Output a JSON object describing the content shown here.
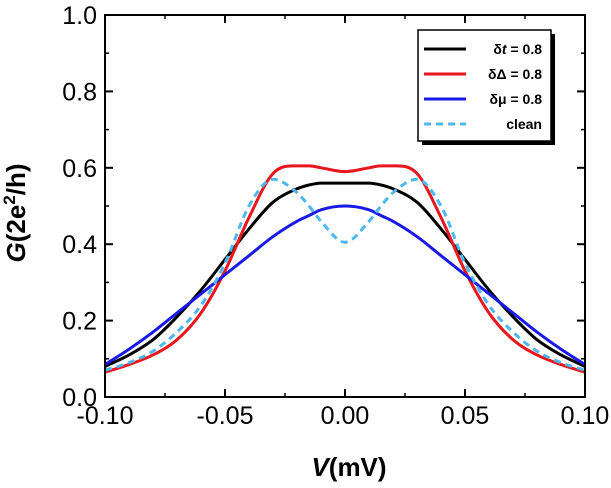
{
  "chart_data": {
    "type": "line",
    "xlabel": {
      "italic": "V",
      "rest": "(mV)"
    },
    "ylabel": {
      "italic": "G",
      "pre": "(2e",
      "sup": "2",
      "post": "/h)"
    },
    "xlim": [
      -0.1,
      0.1
    ],
    "ylim": [
      0.0,
      1.0
    ],
    "xticks": [
      -0.1,
      -0.05,
      0.0,
      0.05,
      0.1
    ],
    "xtick_labels": [
      "-0.10",
      "-0.05",
      "0.00",
      "0.05",
      "0.10"
    ],
    "yticks": [
      0.0,
      0.2,
      0.4,
      0.6,
      0.8,
      1.0
    ],
    "ytick_labels": [
      "0.0",
      "0.2",
      "0.4",
      "0.6",
      "0.8",
      "1.0"
    ],
    "x": [
      -0.1,
      -0.09,
      -0.08,
      -0.07,
      -0.06,
      -0.05,
      -0.04,
      -0.03,
      -0.02,
      -0.015,
      -0.01,
      0.0,
      0.01,
      0.015,
      0.02,
      0.03,
      0.04,
      0.05,
      0.06,
      0.07,
      0.08,
      0.09,
      0.1
    ],
    "series": [
      {
        "name": "δt = 0.8",
        "legend": {
          "prefix": "δ",
          "var": "t",
          "suffix": " = 0.8"
        },
        "color": "#000000",
        "dash": "",
        "values": [
          0.08,
          0.11,
          0.15,
          0.21,
          0.28,
          0.36,
          0.44,
          0.51,
          0.545,
          0.555,
          0.56,
          0.56,
          0.56,
          0.555,
          0.545,
          0.51,
          0.44,
          0.36,
          0.28,
          0.21,
          0.15,
          0.11,
          0.08
        ]
      },
      {
        "name": "δΔ = 0.8",
        "legend": {
          "prefix": "δΔ",
          "var": "",
          "suffix": " = 0.8"
        },
        "color": "#e8161d",
        "dash": "",
        "values": [
          0.065,
          0.085,
          0.11,
          0.15,
          0.22,
          0.33,
          0.47,
          0.585,
          0.605,
          0.605,
          0.6,
          0.59,
          0.6,
          0.605,
          0.605,
          0.585,
          0.47,
          0.33,
          0.22,
          0.15,
          0.11,
          0.085,
          0.065
        ]
      },
      {
        "name": "δμ = 0.8",
        "legend": {
          "prefix": "δμ",
          "var": "",
          "suffix": " = 0.8"
        },
        "color": "#1a1ae6",
        "dash": "",
        "values": [
          0.085,
          0.125,
          0.17,
          0.22,
          0.27,
          0.32,
          0.37,
          0.42,
          0.46,
          0.475,
          0.49,
          0.5,
          0.49,
          0.475,
          0.46,
          0.42,
          0.37,
          0.32,
          0.27,
          0.22,
          0.17,
          0.125,
          0.085
        ]
      },
      {
        "name": "clean",
        "legend": {
          "prefix": "clean",
          "var": "",
          "suffix": ""
        },
        "color": "#4db8f0",
        "dash": "7,5",
        "values": [
          0.07,
          0.09,
          0.12,
          0.17,
          0.24,
          0.35,
          0.5,
          0.57,
          0.535,
          0.5,
          0.46,
          0.405,
          0.46,
          0.5,
          0.535,
          0.57,
          0.5,
          0.35,
          0.24,
          0.17,
          0.12,
          0.09,
          0.07
        ]
      }
    ],
    "legend_position": "top-right"
  }
}
